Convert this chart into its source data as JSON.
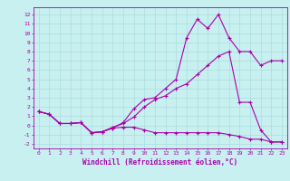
{
  "xlabel": "Windchill (Refroidissement éolien,°C)",
  "bg_color": "#c8f0f0",
  "line_color": "#aa00aa",
  "grid_color": "#aadddd",
  "x_ticks": [
    0,
    1,
    2,
    3,
    4,
    5,
    6,
    7,
    8,
    9,
    10,
    11,
    12,
    13,
    14,
    15,
    16,
    17,
    18,
    19,
    20,
    21,
    22,
    23
  ],
  "y_ticks": [
    -2,
    -1,
    0,
    1,
    2,
    3,
    4,
    5,
    6,
    7,
    8,
    9,
    10,
    11,
    12
  ],
  "xlim": [
    -0.5,
    23.5
  ],
  "ylim": [
    -2.5,
    12.8
  ],
  "line1_y": [
    1.5,
    1.2,
    0.2,
    0.2,
    0.3,
    -0.8,
    -0.7,
    -0.2,
    0.2,
    0.9,
    2.0,
    2.8,
    3.2,
    4.0,
    4.5,
    5.5,
    6.5,
    7.5,
    8.0,
    2.5,
    2.5,
    -0.5,
    -1.8,
    -1.8
  ],
  "line2_y": [
    1.5,
    1.2,
    0.2,
    0.2,
    0.3,
    -0.8,
    -0.7,
    -0.3,
    0.3,
    1.8,
    2.8,
    3.0,
    4.0,
    5.0,
    9.5,
    11.5,
    10.5,
    12.0,
    9.5,
    8.0,
    8.0,
    6.5,
    7.0,
    7.0
  ],
  "line3_y": [
    1.5,
    1.2,
    0.2,
    0.2,
    0.3,
    -0.8,
    -0.7,
    -0.3,
    -0.2,
    -0.2,
    -0.5,
    -0.8,
    -0.8,
    -0.8,
    -0.8,
    -0.8,
    -0.8,
    -0.8,
    -1.0,
    -1.2,
    -1.5,
    -1.5,
    -1.8,
    -1.8
  ],
  "marker": "+",
  "markersize": 3,
  "linewidth": 0.8,
  "tick_fontsize": 4.5,
  "xlabel_fontsize": 5.5
}
